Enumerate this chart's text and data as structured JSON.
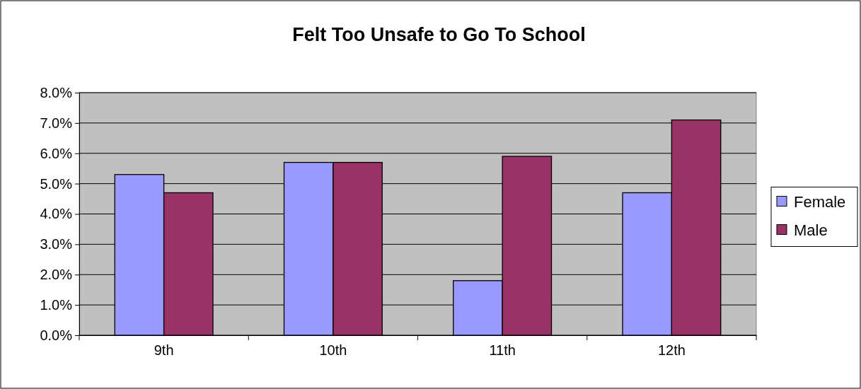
{
  "chart_data": {
    "type": "bar",
    "title": "Felt Too Unsafe to Go To School",
    "categories": [
      "9th",
      "10th",
      "11th",
      "12th"
    ],
    "series": [
      {
        "name": "Female",
        "color": "#9999ff",
        "values": [
          5.3,
          5.7,
          1.8,
          4.7
        ]
      },
      {
        "name": "Male",
        "color": "#993366",
        "values": [
          4.7,
          5.7,
          5.9,
          7.1
        ]
      }
    ],
    "ylim": [
      0,
      8
    ],
    "yticks": [
      {
        "value": 0,
        "label": "0.0%"
      },
      {
        "value": 1,
        "label": "1.0%"
      },
      {
        "value": 2,
        "label": "2.0%"
      },
      {
        "value": 3,
        "label": "3.0%"
      },
      {
        "value": 4,
        "label": "4.0%"
      },
      {
        "value": 5,
        "label": "5.0%"
      },
      {
        "value": 6,
        "label": "6.0%"
      },
      {
        "value": 7,
        "label": "7.0%"
      },
      {
        "value": 8,
        "label": "8.0%"
      }
    ],
    "grid": "y",
    "legend": "right"
  }
}
